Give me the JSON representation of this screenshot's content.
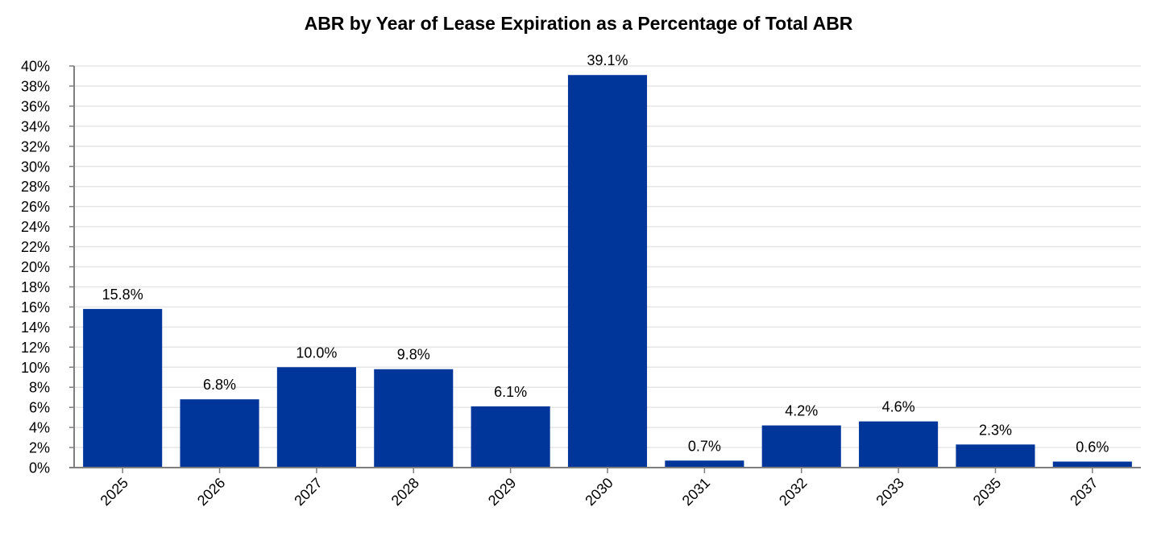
{
  "chart_data": {
    "type": "bar",
    "title": "ABR by Year of Lease Expiration as a Percentage of Total ABR",
    "xlabel": "",
    "ylabel": "",
    "categories": [
      "2025",
      "2026",
      "2027",
      "2028",
      "2029",
      "2030",
      "2031",
      "2032",
      "2033",
      "2035",
      "2037"
    ],
    "values": [
      15.8,
      6.8,
      10.0,
      9.8,
      6.1,
      39.1,
      0.7,
      4.2,
      4.6,
      2.3,
      0.6
    ],
    "data_labels": [
      "15.8%",
      "6.8%",
      "10.0%",
      "9.8%",
      "6.1%",
      "39.1%",
      "0.7%",
      "4.2%",
      "4.6%",
      "2.3%",
      "0.6%"
    ],
    "ylim": [
      0,
      40
    ],
    "yticks": [
      0,
      2,
      4,
      6,
      8,
      10,
      12,
      14,
      16,
      18,
      20,
      22,
      24,
      26,
      28,
      30,
      32,
      34,
      36,
      38,
      40
    ],
    "ytick_labels": [
      "0%",
      "2%",
      "4%",
      "6%",
      "8%",
      "10%",
      "12%",
      "14%",
      "16%",
      "18%",
      "20%",
      "22%",
      "24%",
      "26%",
      "28%",
      "30%",
      "32%",
      "34%",
      "36%",
      "38%",
      "40%"
    ],
    "grid": true,
    "legend": "none",
    "bar_color": "#00359A",
    "grid_color": "#E6E6E6",
    "axis_color": "#7F7F7F"
  }
}
